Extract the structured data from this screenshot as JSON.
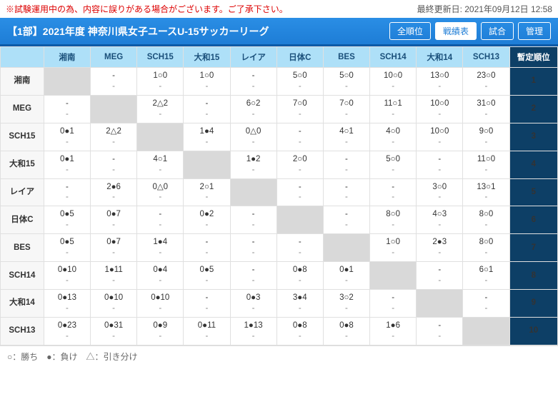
{
  "notice": "※試験運用中の為、内容に誤りがある場合がございます。ご了承下さい。",
  "updated": "最終更新日: 2021年09月12日 12:58",
  "league_title": "【1部】2021年度 神奈川県女子ユースU-15サッカーリーグ",
  "buttons": {
    "all": "全順位",
    "results": "戦績表",
    "match": "試合",
    "admin": "管理"
  },
  "rank_header": "暫定順位",
  "legend": "○：勝ち　●：負け　△：引き分け",
  "teams": [
    "湘南",
    "MEG",
    "SCH15",
    "大和15",
    "レイア",
    "日体C",
    "BES",
    "SCH14",
    "大和14",
    "SCH13"
  ],
  "ranks": [
    "1",
    "2",
    "3",
    "4",
    "5",
    "6",
    "7",
    "8",
    "9",
    "10"
  ],
  "grid": [
    [
      null,
      [
        "-",
        "-"
      ],
      [
        "1○0",
        "-"
      ],
      [
        "1○0",
        "-"
      ],
      [
        "-",
        "-"
      ],
      [
        "5○0",
        "-"
      ],
      [
        "5○0",
        "-"
      ],
      [
        "10○0",
        "-"
      ],
      [
        "13○0",
        "-"
      ],
      [
        "23○0",
        "-"
      ]
    ],
    [
      [
        "-",
        "-"
      ],
      null,
      [
        "2△2",
        "-"
      ],
      [
        "-",
        "-"
      ],
      [
        "6○2",
        "-"
      ],
      [
        "7○0",
        "-"
      ],
      [
        "7○0",
        "-"
      ],
      [
        "11○1",
        "-"
      ],
      [
        "10○0",
        "-"
      ],
      [
        "31○0",
        "-"
      ]
    ],
    [
      [
        "0●1",
        "-"
      ],
      [
        "2△2",
        "-"
      ],
      null,
      [
        "1●4",
        "-"
      ],
      [
        "0△0",
        "-"
      ],
      [
        "-",
        "-"
      ],
      [
        "4○1",
        "-"
      ],
      [
        "4○0",
        "-"
      ],
      [
        "10○0",
        "-"
      ],
      [
        "9○0",
        "-"
      ]
    ],
    [
      [
        "0●1",
        "-"
      ],
      [
        "-",
        "-"
      ],
      [
        "4○1",
        "-"
      ],
      null,
      [
        "1●2",
        "-"
      ],
      [
        "2○0",
        "-"
      ],
      [
        "-",
        "-"
      ],
      [
        "5○0",
        "-"
      ],
      [
        "-",
        "-"
      ],
      [
        "11○0",
        "-"
      ]
    ],
    [
      [
        "-",
        "-"
      ],
      [
        "2●6",
        "-"
      ],
      [
        "0△0",
        "-"
      ],
      [
        "2○1",
        "-"
      ],
      null,
      [
        "-",
        "-"
      ],
      [
        "-",
        "-"
      ],
      [
        "-",
        "-"
      ],
      [
        "3○0",
        "-"
      ],
      [
        "13○1",
        "-"
      ]
    ],
    [
      [
        "0●5",
        "-"
      ],
      [
        "0●7",
        "-"
      ],
      [
        "-",
        "-"
      ],
      [
        "0●2",
        "-"
      ],
      [
        "-",
        "-"
      ],
      null,
      [
        "-",
        "-"
      ],
      [
        "8○0",
        "-"
      ],
      [
        "4○3",
        "-"
      ],
      [
        "8○0",
        "-"
      ]
    ],
    [
      [
        "0●5",
        "-"
      ],
      [
        "0●7",
        "-"
      ],
      [
        "1●4",
        "-"
      ],
      [
        "-",
        "-"
      ],
      [
        "-",
        "-"
      ],
      [
        "-",
        "-"
      ],
      null,
      [
        "1○0",
        "-"
      ],
      [
        "2●3",
        "-"
      ],
      [
        "8○0",
        "-"
      ]
    ],
    [
      [
        "0●10",
        "-"
      ],
      [
        "1●11",
        "-"
      ],
      [
        "0●4",
        "-"
      ],
      [
        "0●5",
        "-"
      ],
      [
        "-",
        "-"
      ],
      [
        "0●8",
        "-"
      ],
      [
        "0●1",
        "-"
      ],
      null,
      [
        "-",
        "-"
      ],
      [
        "6○1",
        "-"
      ]
    ],
    [
      [
        "0●13",
        "-"
      ],
      [
        "0●10",
        "-"
      ],
      [
        "0●10",
        "-"
      ],
      [
        "-",
        "-"
      ],
      [
        "0●3",
        "-"
      ],
      [
        "3●4",
        "-"
      ],
      [
        "3○2",
        "-"
      ],
      [
        "-",
        "-"
      ],
      null,
      [
        "-",
        "-"
      ]
    ],
    [
      [
        "0●23",
        "-"
      ],
      [
        "0●31",
        "-"
      ],
      [
        "0●9",
        "-"
      ],
      [
        "0●11",
        "-"
      ],
      [
        "1●13",
        "-"
      ],
      [
        "0●8",
        "-"
      ],
      [
        "0●8",
        "-"
      ],
      [
        "1●6",
        "-"
      ],
      [
        "-",
        "-"
      ],
      null
    ]
  ],
  "colors": {
    "header_bg": "#2a8ee5",
    "rank_bg": "#0d3f66",
    "th_bg": "#aee0f8",
    "diag": "#d9d9d9"
  }
}
